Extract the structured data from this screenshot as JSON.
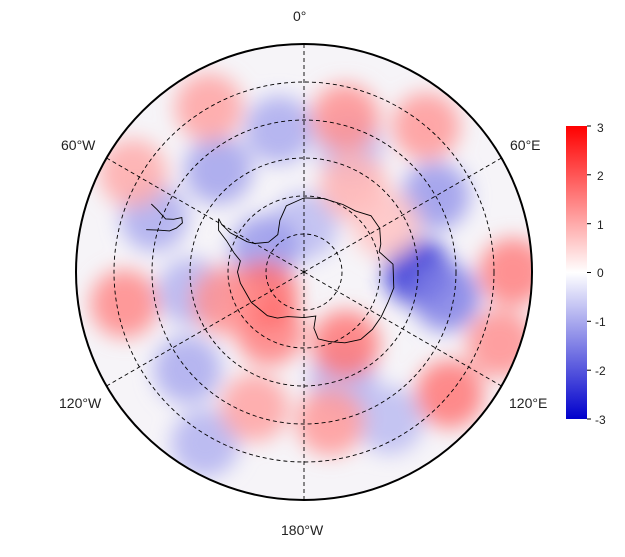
{
  "chart_data": {
    "type": "heatmap",
    "projection": "south-polar-stereographic",
    "title": "",
    "longitude_labels": [
      "0°",
      "60°E",
      "120°E",
      "180°W",
      "120°W",
      "60°W"
    ],
    "longitude_gridlines": [
      0,
      60,
      120,
      180,
      240,
      300
    ],
    "latitude_gridlines": [
      -80,
      -70,
      -60,
      -50,
      -40
    ],
    "extent_southern_latitude_limit": -30,
    "grid": true,
    "coastline": "Antarctica and southern South America",
    "colorbar": {
      "min": -3,
      "max": 3,
      "ticks": [
        "3",
        "2",
        "1",
        "0",
        "-1",
        "-2",
        "-3"
      ],
      "colors": [
        "#0000cc",
        "#ffffff",
        "#ff0000"
      ],
      "placement": "right"
    },
    "anomaly_features": [
      {
        "lon": 90,
        "lat": -60,
        "value": -2.4
      },
      {
        "lon": 100,
        "lat": -52,
        "value": -1.5
      },
      {
        "lon": 60,
        "lat": -50,
        "value": -1.2
      },
      {
        "lon": 20,
        "lat": -55,
        "value": -0.8
      },
      {
        "lon": -10,
        "lat": -52,
        "value": -1.0
      },
      {
        "lon": -40,
        "lat": -55,
        "value": -1.1
      },
      {
        "lon": -70,
        "lat": -48,
        "value": -1.0
      },
      {
        "lon": -100,
        "lat": -60,
        "value": -0.9
      },
      {
        "lon": -130,
        "lat": -50,
        "value": -1.0
      },
      {
        "lon": 160,
        "lat": -60,
        "value": -0.9
      },
      {
        "lon": 150,
        "lat": -45,
        "value": -0.8
      },
      {
        "lon": -150,
        "lat": -38,
        "value": -0.9
      },
      {
        "lon": 0,
        "lat": -78,
        "value": -0.8
      },
      {
        "lon": -60,
        "lat": -78,
        "value": -1.2
      },
      {
        "lon": 15,
        "lat": -48,
        "value": 1.3
      },
      {
        "lon": 40,
        "lat": -40,
        "value": 1.2
      },
      {
        "lon": -30,
        "lat": -40,
        "value": 1.1
      },
      {
        "lon": -60,
        "lat": -38,
        "value": 1.0
      },
      {
        "lon": -100,
        "lat": -42,
        "value": 1.4
      },
      {
        "lon": -160,
        "lat": -52,
        "value": 1.1
      },
      {
        "lon": 170,
        "lat": -50,
        "value": 1.2
      },
      {
        "lon": 130,
        "lat": -40,
        "value": 1.6
      },
      {
        "lon": 110,
        "lat": -35,
        "value": 1.3
      },
      {
        "lon": 90,
        "lat": -35,
        "value": 1.5
      },
      {
        "lon": 150,
        "lat": -68,
        "value": 1.6
      },
      {
        "lon": -150,
        "lat": -72,
        "value": 1.5
      },
      {
        "lon": -120,
        "lat": -78,
        "value": 1.7
      },
      {
        "lon": -110,
        "lat": -68,
        "value": 1.3
      },
      {
        "lon": 30,
        "lat": -64,
        "value": 0.9
      },
      {
        "lon": 60,
        "lat": -65,
        "value": 0.7
      }
    ]
  }
}
